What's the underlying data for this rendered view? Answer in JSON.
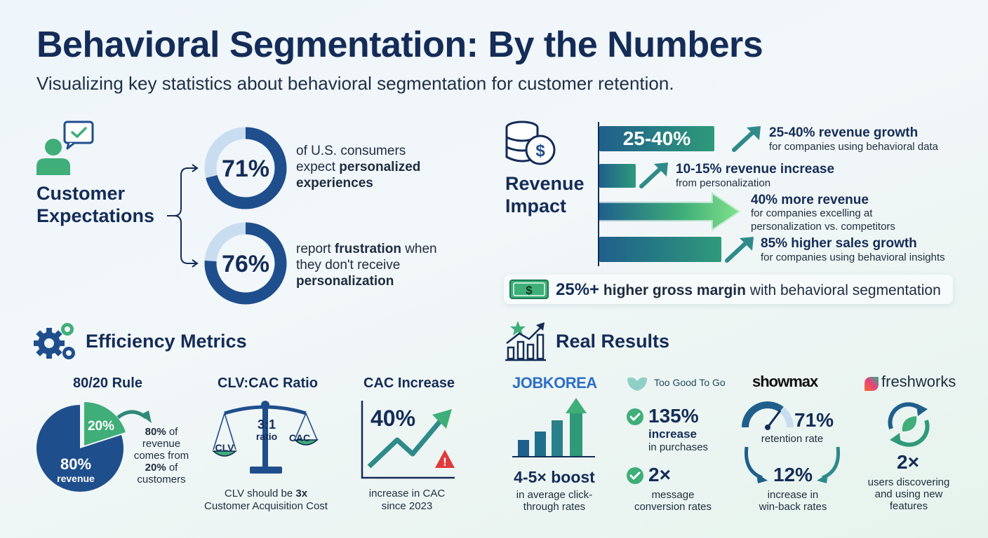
{
  "header": {
    "title": "Behavioral Segmentation: By the Numbers",
    "subtitle": "Visualizing key statistics about behavioral segmentation for customer retention."
  },
  "customer_expectations": {
    "title_line1": "Customer",
    "title_line2": "Expectations",
    "icon": "user-chat-icon",
    "stats": [
      {
        "value": "71%",
        "fraction": 0.71,
        "pre": "of U.S. consumers",
        "mid_plain": "expect ",
        "mid_bold": "personalized",
        "end_bold": "experiences"
      },
      {
        "value": "76%",
        "fraction": 0.76,
        "pre_plain": "report ",
        "pre_bold": "frustration",
        "pre_tail": " when",
        "mid": "they don't receive",
        "end_bold": "personalization"
      }
    ]
  },
  "revenue_impact": {
    "title_line1": "Revenue",
    "title_line2": "Impact",
    "icon": "coins-dollar-icon",
    "bar1_label": "25-40%",
    "items": [
      {
        "headline": "25-40% revenue growth",
        "detail": "for companies using behavioral data"
      },
      {
        "headline": "10-15% revenue increase",
        "detail": "from personalization"
      },
      {
        "headline": "40% more revenue",
        "detail_line1": "for companies excelling at",
        "detail_line2": "personalization vs. competitors"
      },
      {
        "headline": "85% higher sales growth",
        "detail": "for companies using behavioral insights"
      }
    ],
    "margin": {
      "value": "25%+",
      "bold": "higher gross margin",
      "tail": "with behavioral segmentation",
      "icon": "dollar-bill-icon"
    }
  },
  "efficiency": {
    "title": "Efficiency Metrics",
    "icon": "gears-icon",
    "rule": {
      "title": "80/20 Rule",
      "big_pct": "80%",
      "big_label": "revenue",
      "small_pct": "20%",
      "small_fraction": 0.2,
      "desc": [
        "80%",
        " of",
        "revenue",
        "comes from",
        "20%",
        " of",
        "customers"
      ]
    },
    "clv": {
      "title": "CLV:CAC Ratio",
      "ratio": "3:1",
      "ratio_word": "ratio",
      "left": "CLV",
      "right": "CAC",
      "desc_pre": "CLV should be ",
      "desc_bold": "3x",
      "desc_line2": "Customer Acquisition Cost"
    },
    "cac": {
      "title": "CAC Increase",
      "value": "40%",
      "desc_line1": "increase in CAC",
      "desc_line2": "since 2023"
    }
  },
  "results": {
    "title": "Real Results",
    "icon": "chart-star-icon",
    "jobkorea": {
      "logo": "JOBKOREA",
      "stat": "4-5× boost",
      "desc_line1": "in average click-",
      "desc_line2": "through rates"
    },
    "tgtg": {
      "logo": "Too Good To Go",
      "stat1": "135%",
      "stat1_word": "increase",
      "stat1_desc": "in purchases",
      "stat2": "2×",
      "stat2_desc_line1": "message",
      "stat2_desc_line2": "conversion rates"
    },
    "showmax": {
      "logo": "showmax",
      "stat1": "71%",
      "stat1_desc": "retention rate",
      "stat2": "12%",
      "stat2_desc_line1": "increase in",
      "stat2_desc_line2": "win-back rates"
    },
    "freshworks": {
      "logo": "freshworks",
      "stat": "2×",
      "desc_line1": "users discovering",
      "desc_line2": "and using new",
      "desc_line3": "features"
    }
  },
  "colors": {
    "navy": "#1f4e8c",
    "green": "#3fae78",
    "light_ring": "#c9ddf1",
    "dark_text": "#142c57"
  }
}
